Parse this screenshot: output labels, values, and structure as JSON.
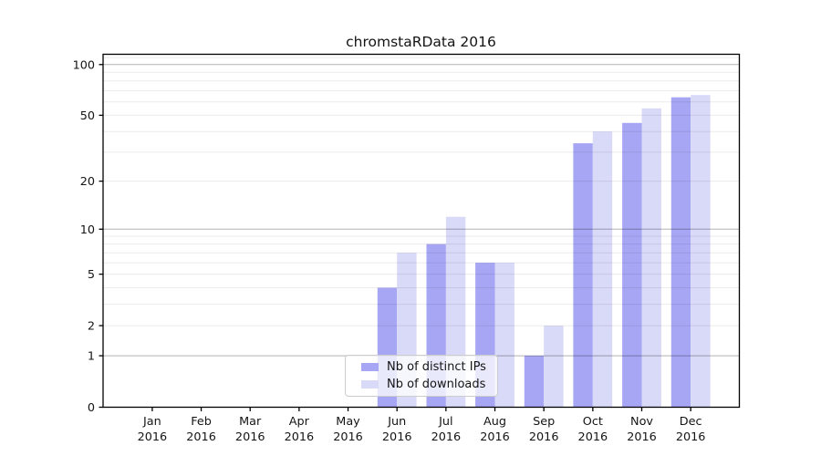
{
  "chart_data": {
    "type": "bar",
    "title": "chromstaRData 2016",
    "categories": [
      "Jan",
      "Feb",
      "Mar",
      "Apr",
      "May",
      "Jun",
      "Jul",
      "Aug",
      "Sep",
      "Oct",
      "Nov",
      "Dec"
    ],
    "year_label": "2016",
    "series": [
      {
        "name": "Nb of distinct IPs",
        "color": "#a6a6f4",
        "values": [
          0,
          0,
          0,
          0,
          0,
          4,
          8,
          6,
          1,
          34,
          45,
          64
        ]
      },
      {
        "name": "Nb of downloads",
        "color": "#d9d9f8",
        "values": [
          0,
          0,
          0,
          0,
          0,
          7,
          12,
          6,
          2,
          40,
          55,
          66
        ]
      }
    ],
    "xlabel": "",
    "ylabel": "",
    "yscale": "log1p",
    "ylim": [
      0,
      115
    ],
    "yticks": [
      0,
      1,
      2,
      5,
      10,
      20,
      50,
      100
    ],
    "grid": {
      "on": true,
      "major_lines": [
        1,
        10,
        100
      ],
      "minor_lines": [
        2,
        3,
        4,
        5,
        6,
        7,
        8,
        9,
        20,
        30,
        40,
        50,
        60,
        70,
        80,
        90,
        110
      ]
    },
    "legend_position": "lower center-left",
    "colors": {
      "axis": "#000000",
      "major_grid": "rgba(0,0,0,0.30)",
      "minor_grid": "rgba(0,0,0,0.08)",
      "text": "#141414"
    }
  }
}
